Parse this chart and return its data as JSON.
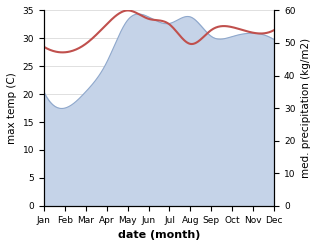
{
  "months": [
    "Jan",
    "Feb",
    "Mar",
    "Apr",
    "May",
    "Jun",
    "Jul",
    "Aug",
    "Sep",
    "Oct",
    "Nov",
    "Dec"
  ],
  "temperature": [
    28.5,
    27.5,
    29.0,
    32.5,
    35.0,
    33.5,
    32.5,
    29.0,
    31.5,
    32.0,
    31.0,
    31.5
  ],
  "precipitation": [
    35,
    30,
    35,
    44,
    57,
    58,
    56,
    58,
    52,
    52,
    53,
    51
  ],
  "temp_color": "#c0504d",
  "precip_fill_color": "#c5d3e8",
  "precip_line_color": "#8fa8cc",
  "left_ylim": [
    0,
    35
  ],
  "right_ylim": [
    0,
    60
  ],
  "left_yticks": [
    0,
    5,
    10,
    15,
    20,
    25,
    30,
    35
  ],
  "right_yticks": [
    0,
    10,
    20,
    30,
    40,
    50,
    60
  ],
  "xlabel": "date (month)",
  "ylabel_left": "max temp (C)",
  "ylabel_right": "med. precipitation (kg/m2)",
  "axis_label_fontsize": 7.5,
  "tick_fontsize": 6.5,
  "xlabel_fontsize": 8,
  "xlabel_fontweight": "bold",
  "temp_linewidth": 1.5,
  "precip_linewidth": 0.8
}
